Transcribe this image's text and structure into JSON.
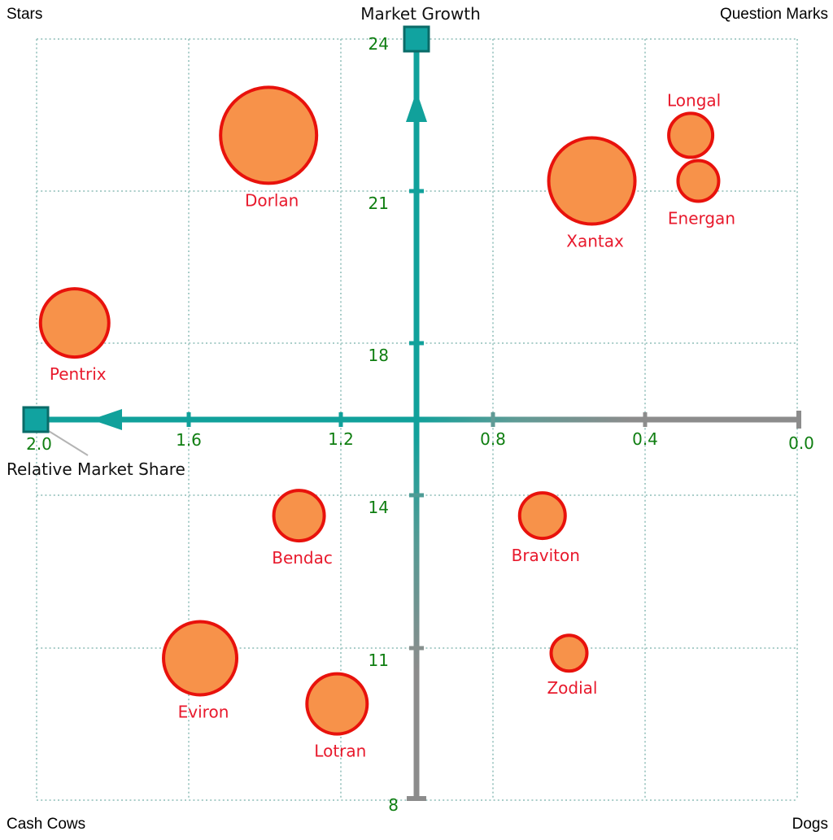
{
  "quadrants": {
    "top_left": "Stars",
    "top_right": "Question Marks",
    "bottom_left": "Cash Cows",
    "bottom_right": "Dogs"
  },
  "axes": {
    "y_title": "Market Growth",
    "x_title": "Relative Market Share",
    "x_ticks": [
      "2.0",
      "1.6",
      "1.2",
      "0.8",
      "0.4",
      "0.0"
    ],
    "y_ticks": [
      "24",
      "21",
      "18",
      "14",
      "11",
      "8"
    ]
  },
  "colors": {
    "bubble_fill": "#F7924A",
    "bubble_stroke": "#E8120C",
    "bubble_label": "#E8192C",
    "tick_label": "#0F7E11",
    "axis_teal": "#11A19B",
    "axis_gray": "#8C8C8C",
    "handle_fill": "#11A3A0",
    "handle_stroke": "#0A6B68",
    "grid": "#A9CDC9",
    "leader": "#B4B4B4",
    "quadrant_label": "#000000"
  },
  "chart_data": {
    "type": "scatter",
    "subtype": "bubble-bcg-matrix",
    "xlabel": "Relative Market Share",
    "ylabel": "Market Growth",
    "x_tick_values": [
      2.0,
      1.6,
      1.2,
      0.8,
      0.4,
      0.0
    ],
    "y_tick_values": [
      24,
      21,
      18,
      14,
      11,
      8
    ],
    "x_axis_reversed": true,
    "axis_cross": {
      "x": 1.0,
      "y": 16
    },
    "grid": "dotted",
    "legend": "none",
    "points": [
      {
        "name": "Dorlan",
        "relative_market_share": 1.39,
        "market_growth": 22.1,
        "radius_px": 59,
        "label_position": "below"
      },
      {
        "name": "Pentrix",
        "relative_market_share": 1.9,
        "market_growth": 18.4,
        "radius_px": 42,
        "label_position": "below"
      },
      {
        "name": "Xantax",
        "relative_market_share": 0.54,
        "market_growth": 21.2,
        "radius_px": 53,
        "label_position": "below"
      },
      {
        "name": "Longal",
        "relative_market_share": 0.28,
        "market_growth": 22.1,
        "radius_px": 27,
        "label_position": "above"
      },
      {
        "name": "Energan",
        "relative_market_share": 0.26,
        "market_growth": 21.2,
        "radius_px": 25,
        "label_position": "below"
      },
      {
        "name": "Bendac",
        "relative_market_share": 1.31,
        "market_growth": 13.6,
        "radius_px": 31,
        "label_position": "below"
      },
      {
        "name": "Braviton",
        "relative_market_share": 0.67,
        "market_growth": 13.6,
        "radius_px": 28,
        "label_position": "below"
      },
      {
        "name": "Eviron",
        "relative_market_share": 1.57,
        "market_growth": 10.8,
        "radius_px": 45,
        "label_position": "below"
      },
      {
        "name": "Lotran",
        "relative_market_share": 1.21,
        "market_growth": 9.9,
        "radius_px": 37,
        "label_position": "below"
      },
      {
        "name": "Zodial",
        "relative_market_share": 0.6,
        "market_growth": 10.9,
        "radius_px": 22,
        "label_position": "below"
      }
    ]
  }
}
